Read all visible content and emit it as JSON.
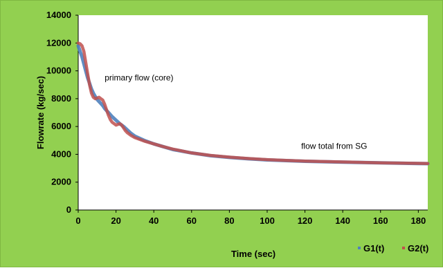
{
  "chart_data": {
    "type": "line",
    "title": "",
    "xlabel": "Time (sec)",
    "ylabel": "Flowrate (kg/sec)",
    "xlim": [
      0,
      185
    ],
    "ylim": [
      0,
      14000
    ],
    "xticks": [
      0,
      20,
      40,
      60,
      80,
      100,
      120,
      140,
      160,
      180
    ],
    "yticks": [
      0,
      2000,
      4000,
      6000,
      8000,
      10000,
      12000,
      14000
    ],
    "grid": false,
    "legend_position": "bottom-right",
    "annotations": [
      {
        "text": "primary flow (core)",
        "x": 14,
        "y": 9300
      },
      {
        "text": "flow total from SG",
        "x": 118,
        "y": 4400
      }
    ],
    "series": [
      {
        "name": "G1(t)",
        "color": "#4f81bd",
        "x": [
          0,
          1,
          2,
          3,
          4,
          5,
          6,
          7,
          8,
          9,
          10,
          11,
          12,
          13,
          14,
          16,
          18,
          20,
          22,
          24,
          26,
          28,
          30,
          35,
          40,
          45,
          50,
          60,
          70,
          80,
          90,
          100,
          110,
          120,
          130,
          140,
          150,
          160,
          170,
          180,
          185
        ],
        "y": [
          11800,
          11400,
          11000,
          10500,
          10000,
          9500,
          9100,
          8700,
          8400,
          8150,
          7950,
          7800,
          7650,
          7500,
          7300,
          7000,
          6700,
          6450,
          6200,
          6000,
          5750,
          5500,
          5300,
          5000,
          4750,
          4550,
          4350,
          4100,
          3900,
          3780,
          3680,
          3600,
          3550,
          3500,
          3470,
          3440,
          3410,
          3390,
          3360,
          3340,
          3330
        ]
      },
      {
        "name": "G2(t)",
        "color": "#c0504d",
        "x": [
          0,
          1,
          2,
          3,
          4,
          5,
          6,
          7,
          8,
          9,
          10,
          11,
          12,
          13,
          14,
          15,
          16,
          17,
          18,
          19,
          20,
          21,
          22,
          23,
          24,
          25,
          26,
          28,
          30,
          35,
          40,
          45,
          50,
          60,
          70,
          80,
          90,
          100,
          110,
          120,
          130,
          140,
          150,
          160,
          170,
          180,
          185
        ],
        "y": [
          12000,
          11950,
          11800,
          11400,
          10600,
          9800,
          9000,
          8400,
          8100,
          8000,
          8050,
          8100,
          8000,
          7900,
          7600,
          7200,
          6800,
          6500,
          6300,
          6200,
          6100,
          6150,
          6200,
          6100,
          5900,
          5700,
          5550,
          5350,
          5200,
          4950,
          4750,
          4550,
          4380,
          4100,
          3920,
          3800,
          3700,
          3620,
          3560,
          3510,
          3480,
          3450,
          3420,
          3390,
          3370,
          3350,
          3340
        ]
      }
    ]
  }
}
